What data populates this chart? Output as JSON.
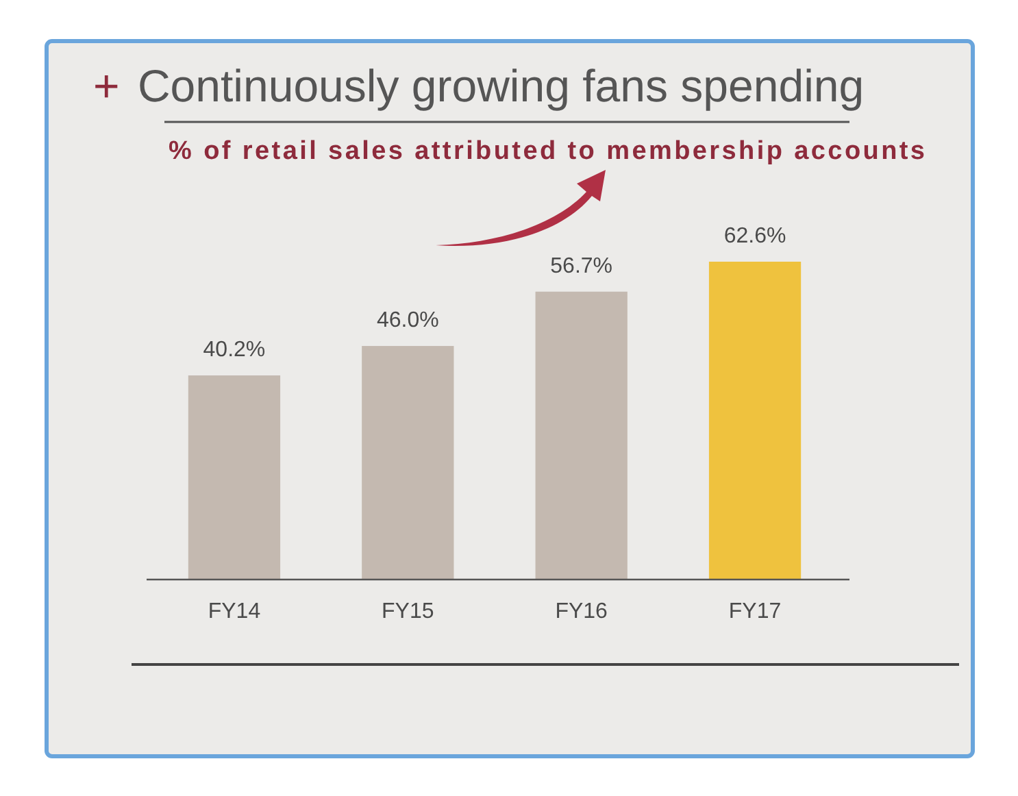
{
  "chart_data": {
    "type": "bar",
    "title": "+ Continuously growing fans spending",
    "subtitle": "% of retail sales attributed to membership accounts",
    "categories": [
      "FY14",
      "FY15",
      "FY16",
      "FY17"
    ],
    "values": [
      40.2,
      46.0,
      56.7,
      62.6
    ],
    "colors": [
      "#c4b9b0",
      "#c4b9b0",
      "#c4b9b0",
      "#efc23e"
    ],
    "value_labels": [
      "40.2%",
      "46.0%",
      "56.7%",
      "62.6%"
    ]
  }
}
